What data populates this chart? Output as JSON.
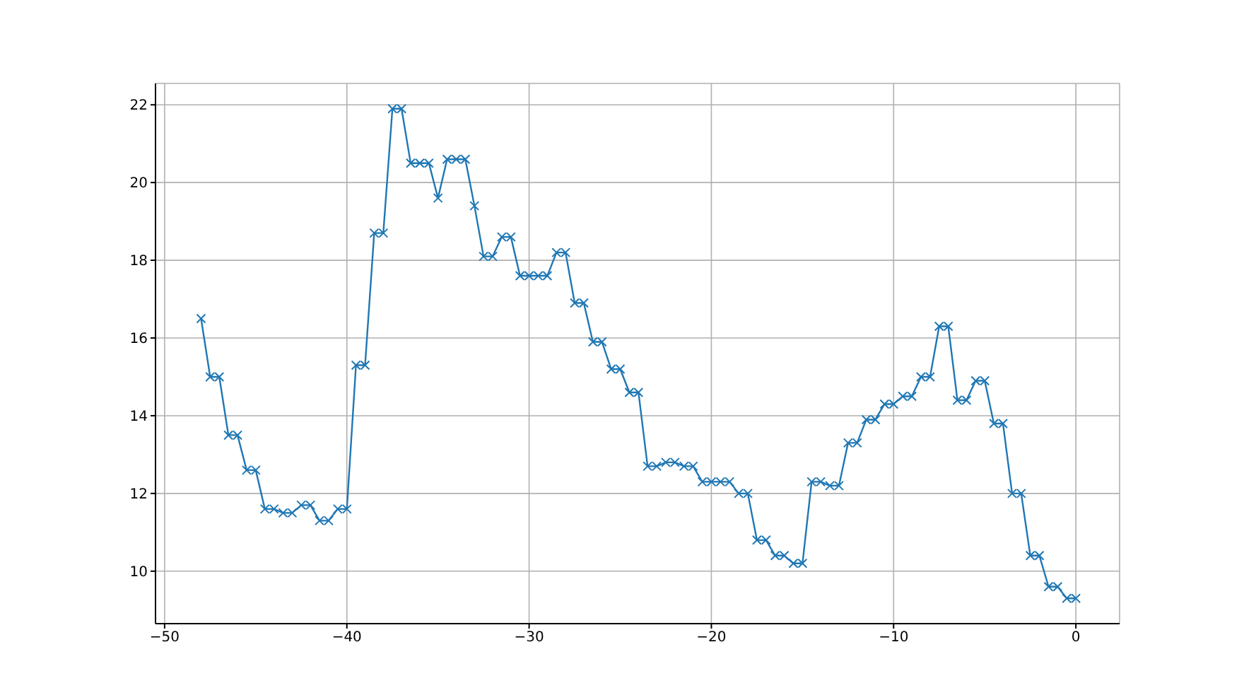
{
  "chart_data": {
    "type": "line",
    "x": [
      -48,
      -47.5,
      -47,
      -46.5,
      -46,
      -45.5,
      -45,
      -44.5,
      -44,
      -43.5,
      -43,
      -42.5,
      -42,
      -41.5,
      -41,
      -40.5,
      -40,
      -39.5,
      -39,
      -38.5,
      -38,
      -37.5,
      -37,
      -36.5,
      -36,
      -35.5,
      -35,
      -34.5,
      -34,
      -33.5,
      -33,
      -32.5,
      -32,
      -31.5,
      -31,
      -30.5,
      -30,
      -29.5,
      -29,
      -28.5,
      -28,
      -27.5,
      -27,
      -26.5,
      -26,
      -25.5,
      -25,
      -24.5,
      -24,
      -23.5,
      -23,
      -22.5,
      -22,
      -21.5,
      -21,
      -20.5,
      -20,
      -19.5,
      -19,
      -18.5,
      -18,
      -17.5,
      -17,
      -16.5,
      -16,
      -15.5,
      -15,
      -14.5,
      -14,
      -13.5,
      -13,
      -12.5,
      -12,
      -11.5,
      -11,
      -10.5,
      -10,
      -9.5,
      -9,
      -8.5,
      -8,
      -7.5,
      -7,
      -6.5,
      -6,
      -5.5,
      -5,
      -4.5,
      -4,
      -3.5,
      -3,
      -2.5,
      -2,
      -1.5,
      -1,
      -0.5,
      0
    ],
    "series": [
      {
        "color": "#1f77b4",
        "values": [
          16.5,
          15.0,
          15.0,
          13.5,
          13.5,
          12.6,
          12.6,
          11.6,
          11.6,
          11.5,
          11.5,
          11.7,
          11.7,
          11.3,
          11.3,
          11.6,
          11.6,
          15.3,
          15.3,
          18.7,
          18.7,
          21.9,
          21.9,
          20.5,
          20.5,
          20.5,
          19.6,
          20.6,
          20.6,
          20.6,
          19.4,
          18.1,
          18.1,
          18.6,
          18.6,
          17.6,
          17.6,
          17.6,
          17.6,
          18.2,
          18.2,
          16.9,
          16.9,
          15.9,
          15.9,
          15.2,
          15.2,
          14.6,
          14.6,
          12.7,
          12.7,
          12.8,
          12.8,
          12.7,
          12.7,
          12.3,
          12.3,
          12.3,
          12.3,
          12.0,
          12.0,
          10.8,
          10.8,
          10.4,
          10.4,
          10.2,
          10.2,
          12.3,
          12.3,
          12.2,
          12.2,
          13.3,
          13.3,
          13.9,
          13.9,
          14.3,
          14.3,
          14.5,
          14.5,
          15.0,
          15.0,
          16.3,
          16.3,
          14.4,
          14.4,
          14.9,
          14.9,
          13.8,
          13.8,
          12.0,
          12.0,
          10.4,
          10.4,
          9.6,
          9.6,
          9.3,
          9.3
        ]
      }
    ],
    "xlim": [
      -50.5,
      2.4
    ],
    "xticks": [
      -50,
      -40,
      -30,
      -20,
      -10,
      0
    ],
    "ylim": [
      8.65,
      22.55
    ],
    "yticks": [
      10,
      12,
      14,
      16,
      18,
      20,
      22
    ],
    "grid": true,
    "marker": "cross",
    "line_style": "solid",
    "legend": false
  }
}
